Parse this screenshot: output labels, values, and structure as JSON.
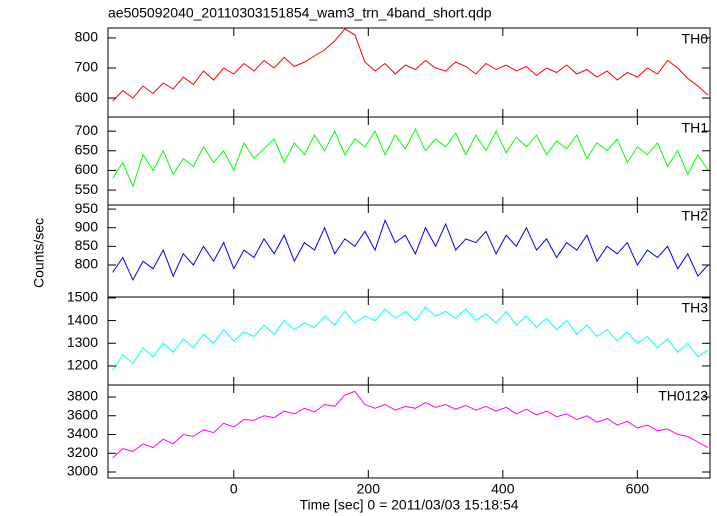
{
  "chart_data": [
    {
      "type": "line",
      "title": "ae505092040_20110303151854_wam3_trn_4band_short.qdp",
      "ylabel": "Counts/sec",
      "x": [
        -180,
        -165,
        -150,
        -135,
        -120,
        -105,
        -90,
        -75,
        -60,
        -45,
        -30,
        -15,
        0,
        15,
        30,
        45,
        60,
        75,
        90,
        105,
        120,
        135,
        150,
        165,
        180,
        195,
        210,
        225,
        240,
        255,
        270,
        285,
        300,
        315,
        330,
        345,
        360,
        375,
        390,
        405,
        420,
        435,
        450,
        465,
        480,
        495,
        510,
        525,
        540,
        555,
        570,
        585,
        600,
        615,
        630,
        645,
        660,
        675,
        690,
        705
      ],
      "series": [
        {
          "name": "TH0",
          "color": "#ff0000",
          "values": [
            590,
            625,
            600,
            640,
            615,
            650,
            630,
            670,
            645,
            690,
            660,
            700,
            680,
            715,
            690,
            725,
            700,
            735,
            705,
            720,
            740,
            760,
            790,
            830,
            810,
            720,
            690,
            715,
            680,
            710,
            695,
            725,
            700,
            690,
            720,
            705,
            680,
            715,
            695,
            710,
            690,
            705,
            675,
            700,
            685,
            710,
            680,
            695,
            670,
            690,
            660,
            685,
            670,
            700,
            680,
            725,
            700,
            665,
            640,
            610
          ]
        }
      ],
      "xlim": [
        -187,
        708
      ],
      "xticks": [
        0,
        200,
        400,
        600
      ],
      "ylim": [
        537,
        833
      ],
      "yticks": [
        600,
        700,
        800
      ]
    },
    {
      "type": "line",
      "x": [
        -180,
        -165,
        -150,
        -135,
        -120,
        -105,
        -90,
        -75,
        -60,
        -45,
        -30,
        -15,
        0,
        15,
        30,
        45,
        60,
        75,
        90,
        105,
        120,
        135,
        150,
        165,
        180,
        195,
        210,
        225,
        240,
        255,
        270,
        285,
        300,
        315,
        330,
        345,
        360,
        375,
        390,
        405,
        420,
        435,
        450,
        465,
        480,
        495,
        510,
        525,
        540,
        555,
        570,
        585,
        600,
        615,
        630,
        645,
        660,
        675,
        690,
        705
      ],
      "series": [
        {
          "name": "TH1",
          "color": "#00ff00",
          "values": [
            580,
            620,
            560,
            640,
            600,
            650,
            590,
            630,
            610,
            660,
            620,
            650,
            600,
            670,
            630,
            655,
            680,
            620,
            670,
            640,
            690,
            650,
            700,
            640,
            680,
            660,
            700,
            640,
            690,
            655,
            705,
            650,
            680,
            660,
            695,
            640,
            690,
            650,
            700,
            645,
            685,
            660,
            690,
            640,
            675,
            655,
            690,
            630,
            670,
            650,
            680,
            620,
            660,
            640,
            670,
            610,
            650,
            590,
            640,
            600
          ]
        }
      ],
      "xlim": [
        -187,
        708
      ],
      "xticks": [
        0,
        200,
        400,
        600
      ],
      "ylim": [
        512,
        736
      ],
      "yticks": [
        550,
        600,
        650,
        700
      ]
    },
    {
      "type": "line",
      "x": [
        -180,
        -165,
        -150,
        -135,
        -120,
        -105,
        -90,
        -75,
        -60,
        -45,
        -30,
        -15,
        0,
        15,
        30,
        45,
        60,
        75,
        90,
        105,
        120,
        135,
        150,
        165,
        180,
        195,
        210,
        225,
        240,
        255,
        270,
        285,
        300,
        315,
        330,
        345,
        360,
        375,
        390,
        405,
        420,
        435,
        450,
        465,
        480,
        495,
        510,
        525,
        540,
        555,
        570,
        585,
        600,
        615,
        630,
        645,
        660,
        675,
        690,
        705
      ],
      "series": [
        {
          "name": "TH2",
          "color": "#0000ee",
          "values": [
            780,
            820,
            760,
            810,
            790,
            840,
            770,
            830,
            800,
            850,
            810,
            860,
            790,
            840,
            820,
            870,
            830,
            880,
            810,
            860,
            840,
            900,
            830,
            870,
            850,
            890,
            840,
            920,
            860,
            880,
            830,
            900,
            850,
            910,
            840,
            870,
            860,
            890,
            830,
            880,
            850,
            900,
            840,
            870,
            820,
            860,
            840,
            880,
            810,
            850,
            830,
            860,
            800,
            840,
            820,
            850,
            790,
            830,
            770,
            800
          ]
        }
      ],
      "xlim": [
        -187,
        708
      ],
      "xticks": [
        0,
        200,
        400,
        600
      ],
      "ylim": [
        714,
        961
      ],
      "yticks": [
        800,
        850,
        900,
        950
      ]
    },
    {
      "type": "line",
      "x": [
        -180,
        -165,
        -150,
        -135,
        -120,
        -105,
        -90,
        -75,
        -60,
        -45,
        -30,
        -15,
        0,
        15,
        30,
        45,
        60,
        75,
        90,
        105,
        120,
        135,
        150,
        165,
        180,
        195,
        210,
        225,
        240,
        255,
        270,
        285,
        300,
        315,
        330,
        345,
        360,
        375,
        390,
        405,
        420,
        435,
        450,
        465,
        480,
        495,
        510,
        525,
        540,
        555,
        570,
        585,
        600,
        615,
        630,
        645,
        660,
        675,
        690,
        705
      ],
      "series": [
        {
          "name": "TH3",
          "color": "#00ffff",
          "values": [
            1180,
            1250,
            1210,
            1280,
            1240,
            1300,
            1260,
            1320,
            1280,
            1340,
            1300,
            1360,
            1310,
            1350,
            1330,
            1380,
            1340,
            1400,
            1360,
            1390,
            1370,
            1420,
            1380,
            1440,
            1390,
            1420,
            1400,
            1450,
            1410,
            1440,
            1400,
            1460,
            1420,
            1440,
            1410,
            1450,
            1400,
            1430,
            1390,
            1440,
            1380,
            1420,
            1370,
            1410,
            1360,
            1400,
            1340,
            1380,
            1330,
            1360,
            1310,
            1350,
            1300,
            1330,
            1280,
            1320,
            1260,
            1300,
            1240,
            1270
          ]
        }
      ],
      "xlim": [
        -187,
        708
      ],
      "xticks": [
        0,
        200,
        400,
        600
      ],
      "ylim": [
        1116,
        1504
      ],
      "yticks": [
        1200,
        1300,
        1400,
        1500
      ]
    },
    {
      "type": "line",
      "xlabel": "Time [sec] 0 = 2011/03/03 15:18:54",
      "x": [
        -180,
        -165,
        -150,
        -135,
        -120,
        -105,
        -90,
        -75,
        -60,
        -45,
        -30,
        -15,
        0,
        15,
        30,
        45,
        60,
        75,
        90,
        105,
        120,
        135,
        150,
        165,
        180,
        195,
        210,
        225,
        240,
        255,
        270,
        285,
        300,
        315,
        330,
        345,
        360,
        375,
        390,
        405,
        420,
        435,
        450,
        465,
        480,
        495,
        510,
        525,
        540,
        555,
        570,
        585,
        600,
        615,
        630,
        645,
        660,
        675,
        690,
        705
      ],
      "series": [
        {
          "name": "TH0123",
          "color": "#ff00ff",
          "values": [
            3150,
            3250,
            3220,
            3300,
            3260,
            3350,
            3300,
            3400,
            3380,
            3450,
            3420,
            3520,
            3480,
            3560,
            3550,
            3600,
            3580,
            3650,
            3620,
            3680,
            3640,
            3720,
            3700,
            3820,
            3860,
            3720,
            3680,
            3720,
            3660,
            3700,
            3680,
            3740,
            3690,
            3720,
            3670,
            3710,
            3660,
            3700,
            3650,
            3690,
            3620,
            3670,
            3610,
            3650,
            3590,
            3620,
            3560,
            3600,
            3530,
            3570,
            3500,
            3540,
            3470,
            3500,
            3440,
            3460,
            3400,
            3380,
            3320,
            3260
          ]
        }
      ],
      "xlim": [
        -187,
        708
      ],
      "xticks": [
        0,
        200,
        400,
        600
      ],
      "ylim": [
        2936,
        3928
      ],
      "yticks": [
        3000,
        3200,
        3400,
        3600,
        3800
      ]
    }
  ]
}
